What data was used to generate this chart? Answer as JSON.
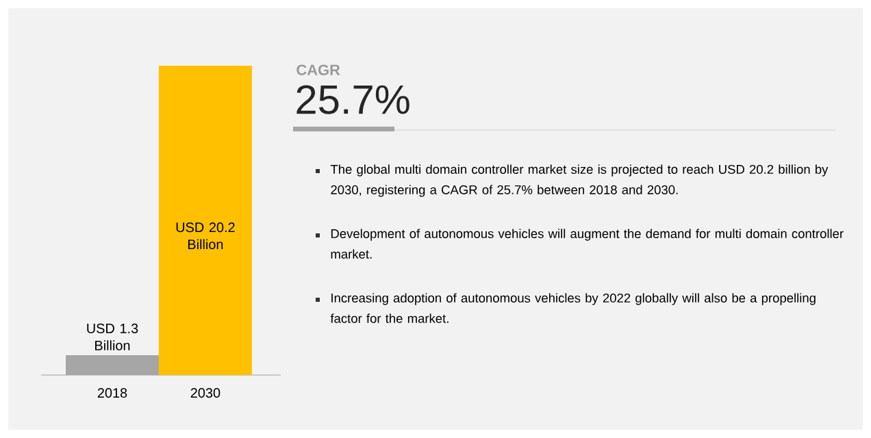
{
  "chart_data": {
    "type": "bar",
    "categories": [
      "2018",
      "2030"
    ],
    "values": [
      1.3,
      20.2
    ],
    "colors": [
      "#a6a6a6",
      "#ffc000"
    ],
    "value_labels": [
      "USD 1.3 Billion",
      "USD 20.2 Billion"
    ],
    "annotations": [
      "CAGR",
      "25.7%",
      "The global multi domain controller market size is projected to reach USD 20.2 billion by 2030, registering a CAGR of 25.7% between 2018 and 2030.",
      "Development of autonomous vehicles will augment the demand for multi domain controller market.",
      "Increasing adoption of autonomous vehicles by 2022 globally will also be a propelling factor for the market."
    ]
  }
}
